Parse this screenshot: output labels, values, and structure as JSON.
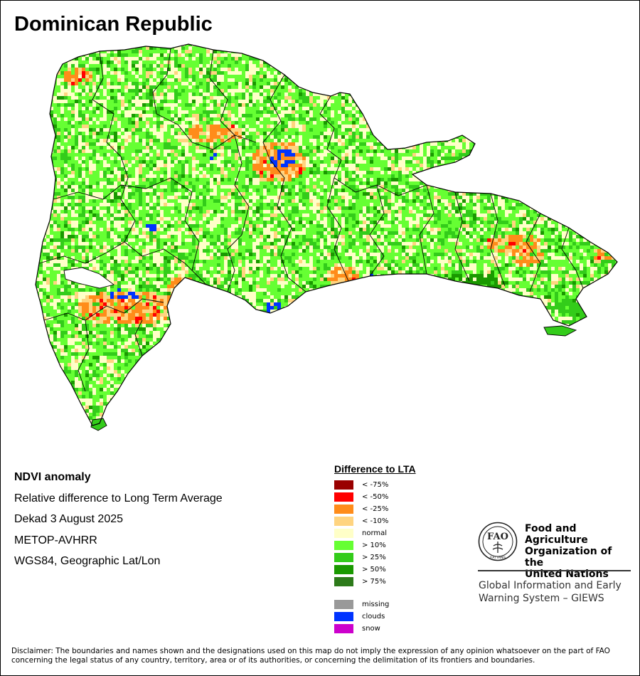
{
  "map": {
    "title": "Dominican Republic",
    "colors": {
      "water": "#ffffff",
      "outline": "#000000",
      "lt75": "#990000",
      "lt50": "#ff0000",
      "lt25": "#ff8c1a",
      "lt10": "#ffd480",
      "normal": "#ffffc8",
      "gt10": "#66ff33",
      "gt25": "#33cc1a",
      "gt50": "#1a9900",
      "gt75": "#2d7a1a",
      "missing": "#999999",
      "clouds": "#0033ff",
      "snow": "#cc00cc"
    }
  },
  "info": {
    "product": "NDVI anomaly",
    "description": "Relative difference to Long Term Average",
    "period": "Dekad 3 August 2025",
    "sensor": "METOP-AVHRR",
    "projection": "WGS84, Geographic Lat/Lon"
  },
  "legend": {
    "title": "Difference to LTA",
    "classes": [
      {
        "label": "< -75%",
        "color": "#990000"
      },
      {
        "label": "< -50%",
        "color": "#ff0000"
      },
      {
        "label": "< -25%",
        "color": "#ff8c1a"
      },
      {
        "label": "< -10%",
        "color": "#ffd480"
      },
      {
        "label": "normal",
        "color": "#ffffc8"
      },
      {
        "label": "> 10%",
        "color": "#66ff33"
      },
      {
        "label": "> 25%",
        "color": "#33cc1a"
      },
      {
        "label": "> 50%",
        "color": "#1a9900"
      },
      {
        "label": "> 75%",
        "color": "#2d7a1a"
      }
    ],
    "extra": [
      {
        "label": "missing",
        "color": "#999999"
      },
      {
        "label": "clouds",
        "color": "#0033ff"
      },
      {
        "label": "snow",
        "color": "#cc00cc"
      }
    ]
  },
  "org": {
    "name_line1": "Food and Agriculture",
    "name_line2": "Organization of the",
    "name_line3": "United Nations",
    "logo_text": "FAO",
    "logo_motto": "FIAT PANIS",
    "system_line1": "Global Information and Early",
    "system_line2": "Warning System – GIEWS"
  },
  "disclaimer": "Disclaimer: The boundaries and names shown and the designations used on this map do not imply the expression of any opinion whatsoever on the part of FAO concerning the legal status of any country, territory, area or of its authorities, or concerning the delimitation of its frontiers and boundaries."
}
